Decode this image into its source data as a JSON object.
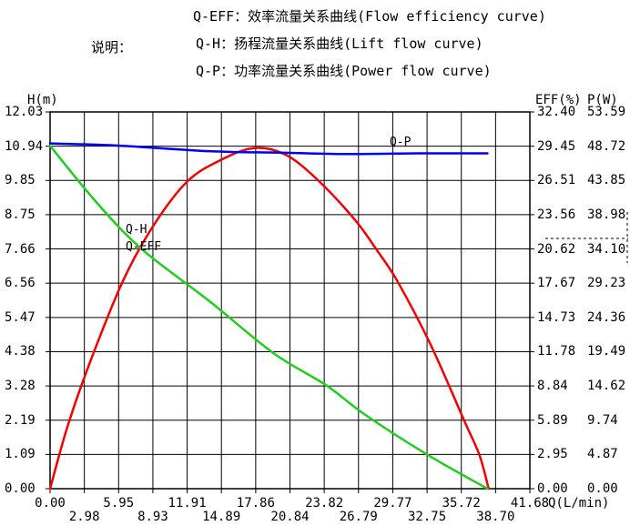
{
  "header": {
    "legend_label": "说明：",
    "lines": [
      "Q-EFF：效率流量关系曲线(Flow efficiency curve)",
      "Q-H：扬程流量关系曲线(Lift flow curve)",
      "Q-P：功率流量关系曲线(Power flow curve)"
    ]
  },
  "chart_data": {
    "type": "line",
    "grid": true,
    "x_axis": {
      "label": "Q(L/min)",
      "min": 0,
      "max": 41.68,
      "ticks": [
        "0.00",
        "2.98",
        "5.95",
        "8.93",
        "11.91",
        "14.89",
        "17.86",
        "20.84",
        "23.82",
        "26.79",
        "29.77",
        "32.75",
        "35.72",
        "38.70",
        "41.68"
      ]
    },
    "y_axis_h": {
      "label": "H(m)",
      "min": 0,
      "max": 12.03,
      "ticks": [
        "12.03",
        "10.94",
        "9.85",
        "8.75",
        "7.66",
        "6.56",
        "5.47",
        "4.38",
        "3.28",
        "2.19",
        "1.09",
        "0.00"
      ]
    },
    "y_axis_eff": {
      "label": "EFF(%)",
      "min": 0,
      "max": 32.4,
      "ticks": [
        "32.40",
        "29.45",
        "26.51",
        "23.56",
        "20.62",
        "17.67",
        "14.73",
        "11.78",
        "8.84",
        "5.89",
        "2.95",
        "0.00"
      ]
    },
    "y_axis_p": {
      "label": "P(W)",
      "min": 0,
      "max": 53.59,
      "ticks": [
        "53.59",
        "48.72",
        "43.85",
        "38.98",
        "34.10",
        "29.23",
        "24.36",
        "19.49",
        "14.62",
        "9.74",
        "4.87",
        "0.00"
      ]
    },
    "series": [
      {
        "name": "Q-EFF",
        "axis": "eff",
        "color": "#f00000",
        "points": [
          [
            0,
            0
          ],
          [
            1.5,
            5.3
          ],
          [
            3.4,
            10.7
          ],
          [
            6.3,
            17.8
          ],
          [
            8.9,
            22.5
          ],
          [
            11.9,
            26.4
          ],
          [
            14.9,
            28.3
          ],
          [
            17.8,
            29.3
          ],
          [
            20.5,
            28.7
          ],
          [
            23.3,
            26.5
          ],
          [
            26.5,
            23.1
          ],
          [
            28.4,
            20.5
          ],
          [
            30.2,
            17.8
          ],
          [
            33.1,
            12.3
          ],
          [
            36.0,
            5.8
          ],
          [
            37.3,
            2.9
          ],
          [
            38.1,
            0
          ]
        ]
      },
      {
        "name": "Q-H",
        "axis": "h",
        "color": "#22cc22",
        "points": [
          [
            0,
            10.95
          ],
          [
            3.9,
            9.2
          ],
          [
            7.9,
            7.67
          ],
          [
            13.8,
            6.0
          ],
          [
            19.4,
            4.33
          ],
          [
            24.0,
            3.3
          ],
          [
            27.3,
            2.38
          ],
          [
            32.8,
            1.08
          ],
          [
            38.0,
            0
          ]
        ]
      },
      {
        "name": "Q-P",
        "axis": "p",
        "color": "#0000f0",
        "points": [
          [
            0,
            49.1
          ],
          [
            5.9,
            48.8
          ],
          [
            13.8,
            48.0
          ],
          [
            20.0,
            47.8
          ],
          [
            25.7,
            47.6
          ],
          [
            32.0,
            47.7
          ],
          [
            38.0,
            47.7
          ]
        ]
      }
    ],
    "curve_labels": [
      {
        "text": "Q-H",
        "x": 138,
        "y": 246
      },
      {
        "text": "Q-EFF",
        "x": 138,
        "y": 265
      },
      {
        "text": "Q-P",
        "x": 428,
        "y": 150
      }
    ]
  },
  "colors": {
    "background": "#ffffff",
    "grid": "#000000",
    "text": "#000000",
    "eff_curve": "#f00000",
    "h_curve": "#22cc22",
    "p_curve": "#0000f0"
  }
}
